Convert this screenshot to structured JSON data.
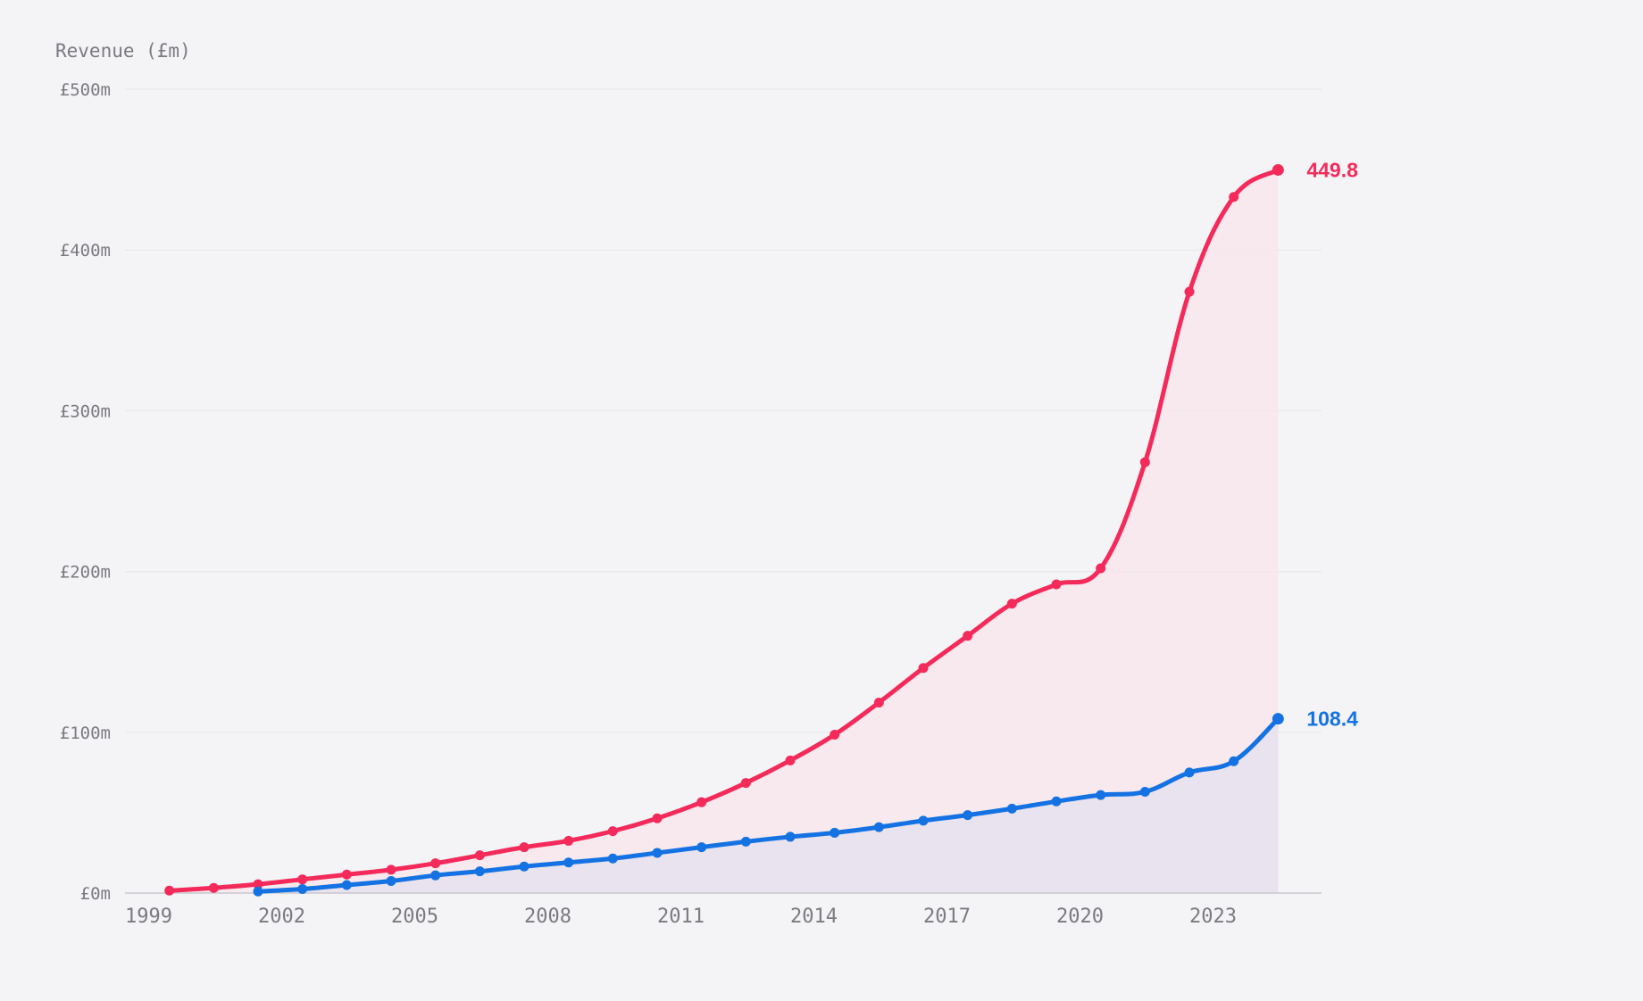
{
  "chart_data": {
    "type": "area",
    "ylabel": "Revenue (£m)",
    "xlabel": "",
    "title": "",
    "xlim": [
      1999,
      2025
    ],
    "ylim": [
      0,
      500
    ],
    "grid": true,
    "legend": "none (end-of-line value labels)",
    "x_ticks": [
      "1999",
      "2002",
      "2005",
      "2008",
      "2011",
      "2014",
      "2017",
      "2020",
      "2023"
    ],
    "y_ticks": [
      "£0m",
      "£100m",
      "£200m",
      "£300m",
      "£400m",
      "£500m"
    ],
    "y_tick_values": [
      0,
      100,
      200,
      300,
      400,
      500
    ],
    "series": [
      {
        "color": "#f42a5a",
        "fill": "#f7e6ec",
        "end_label": "449.8",
        "x": [
          2000,
          2001,
          2002,
          2003,
          2004,
          2005,
          2006,
          2007,
          2008,
          2009,
          2010,
          2011,
          2012,
          2013,
          2014,
          2015,
          2016,
          2017,
          2018,
          2019,
          2020,
          2021,
          2022,
          2023,
          2024,
          2025
        ],
        "values": [
          1.5,
          3.2,
          5.5,
          8.5,
          11.5,
          14.5,
          18.5,
          23.5,
          28.5,
          32.5,
          38.5,
          46.5,
          56.5,
          68.5,
          82.5,
          98.5,
          118.5,
          140.0,
          160.0,
          180.0,
          192.0,
          202.0,
          268.0,
          374.0,
          433.0,
          449.8
        ]
      },
      {
        "color": "#1472e3",
        "fill": "#e6e1ee",
        "end_label": "108.4",
        "x": [
          2002,
          2003,
          2004,
          2005,
          2006,
          2007,
          2008,
          2009,
          2010,
          2011,
          2012,
          2013,
          2014,
          2015,
          2016,
          2017,
          2018,
          2019,
          2020,
          2021,
          2022,
          2023,
          2024,
          2025
        ],
        "values": [
          1.0,
          2.5,
          5.0,
          7.5,
          11.0,
          13.5,
          16.5,
          19.0,
          21.5,
          25.0,
          28.5,
          32.0,
          35.0,
          37.5,
          41.0,
          45.0,
          48.5,
          52.5,
          57.0,
          61.0,
          63.0,
          75.0,
          82.0,
          108.4
        ]
      }
    ]
  }
}
